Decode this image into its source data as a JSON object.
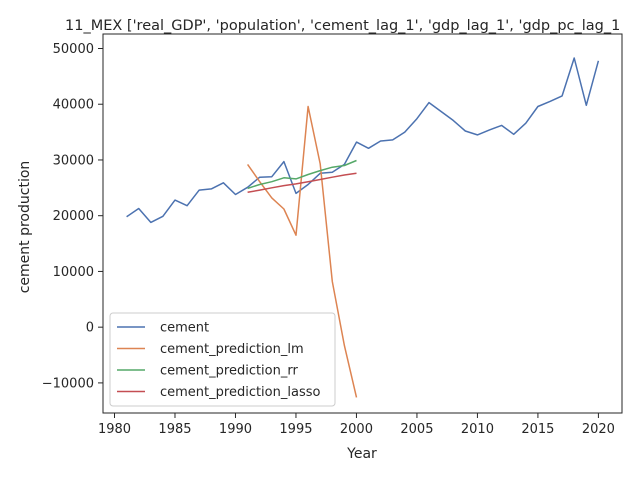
{
  "chart_data": {
    "type": "line",
    "title": "11_MEX ['real_GDP', 'population', 'cement_lag_1', 'gdp_lag_1', 'gdp_pc_lag_1",
    "xlabel": "Year",
    "ylabel": "cement production",
    "xlim": [
      1979.05,
      2021.95
    ],
    "ylim": [
      -15400,
      52600
    ],
    "x_ticks": [
      1980,
      1985,
      1990,
      1995,
      2000,
      2005,
      2010,
      2015,
      2020
    ],
    "y_ticks": [
      -10000,
      0,
      10000,
      20000,
      30000,
      40000,
      50000
    ],
    "grid": false,
    "legend_position": "lower-left",
    "series": [
      {
        "name": "cement",
        "color": "#4c72b0",
        "x": [
          1981,
          1982,
          1983,
          1984,
          1985,
          1986,
          1987,
          1988,
          1989,
          1990,
          1991,
          1992,
          1993,
          1994,
          1995,
          1996,
          1997,
          1998,
          1999,
          2000,
          2001,
          2002,
          2003,
          2004,
          2005,
          2006,
          2007,
          2008,
          2009,
          2010,
          2011,
          2012,
          2013,
          2014,
          2015,
          2016,
          2017,
          2018,
          2019,
          2020
        ],
        "y": [
          19800,
          21300,
          18800,
          19900,
          22800,
          21800,
          24600,
          24800,
          25900,
          23800,
          25100,
          26900,
          27000,
          29700,
          24000,
          25600,
          27600,
          27800,
          29200,
          33200,
          32100,
          33400,
          33600,
          35000,
          37400,
          40300,
          38700,
          37100,
          35200,
          34500,
          35400,
          36200,
          34600,
          36600,
          39600,
          40500,
          41500,
          48300,
          39800,
          47800
        ]
      },
      {
        "name": "cement_prediction_lm",
        "color": "#dd8452",
        "x": [
          1991,
          1992,
          1993,
          1994,
          1995,
          1996,
          1997,
          1998,
          1999,
          2000
        ],
        "y": [
          29200,
          26100,
          23200,
          21200,
          16500,
          39600,
          29300,
          8200,
          -3300,
          -12600
        ]
      },
      {
        "name": "cement_prediction_rr",
        "color": "#55a868",
        "x": [
          1991,
          1992,
          1993,
          1994,
          1995,
          1996,
          1997,
          1998,
          1999,
          2000
        ],
        "y": [
          24900,
          25600,
          26100,
          26800,
          26600,
          27400,
          28100,
          28700,
          29000,
          29900
        ]
      },
      {
        "name": "cement_prediction_lasso",
        "color": "#c44e52",
        "x": [
          1991,
          1992,
          1993,
          1994,
          1995,
          1996,
          1997,
          1998,
          1999,
          2000
        ],
        "y": [
          24200,
          24600,
          25000,
          25400,
          25700,
          26100,
          26500,
          26900,
          27300,
          27600
        ]
      }
    ]
  }
}
